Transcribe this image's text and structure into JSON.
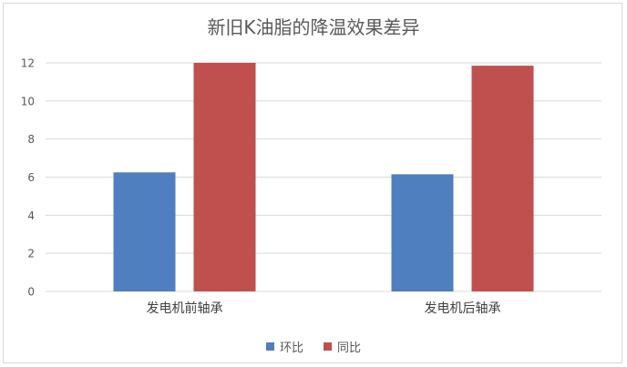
{
  "chart_data": {
    "type": "bar",
    "title": "新旧K油脂的降温效果差异",
    "categories": [
      "发电机前轴承",
      "发电机后轴承"
    ],
    "series": [
      {
        "name": "环比",
        "values": [
          6.25,
          6.15
        ],
        "color": "#4f7fbe"
      },
      {
        "name": "同比",
        "values": [
          12.0,
          11.85
        ],
        "color": "#c0504d"
      }
    ],
    "ylim": [
      0,
      12
    ],
    "yticks": [
      0,
      2,
      4,
      6,
      8,
      10,
      12
    ],
    "grid": true,
    "legend_position": "bottom"
  }
}
